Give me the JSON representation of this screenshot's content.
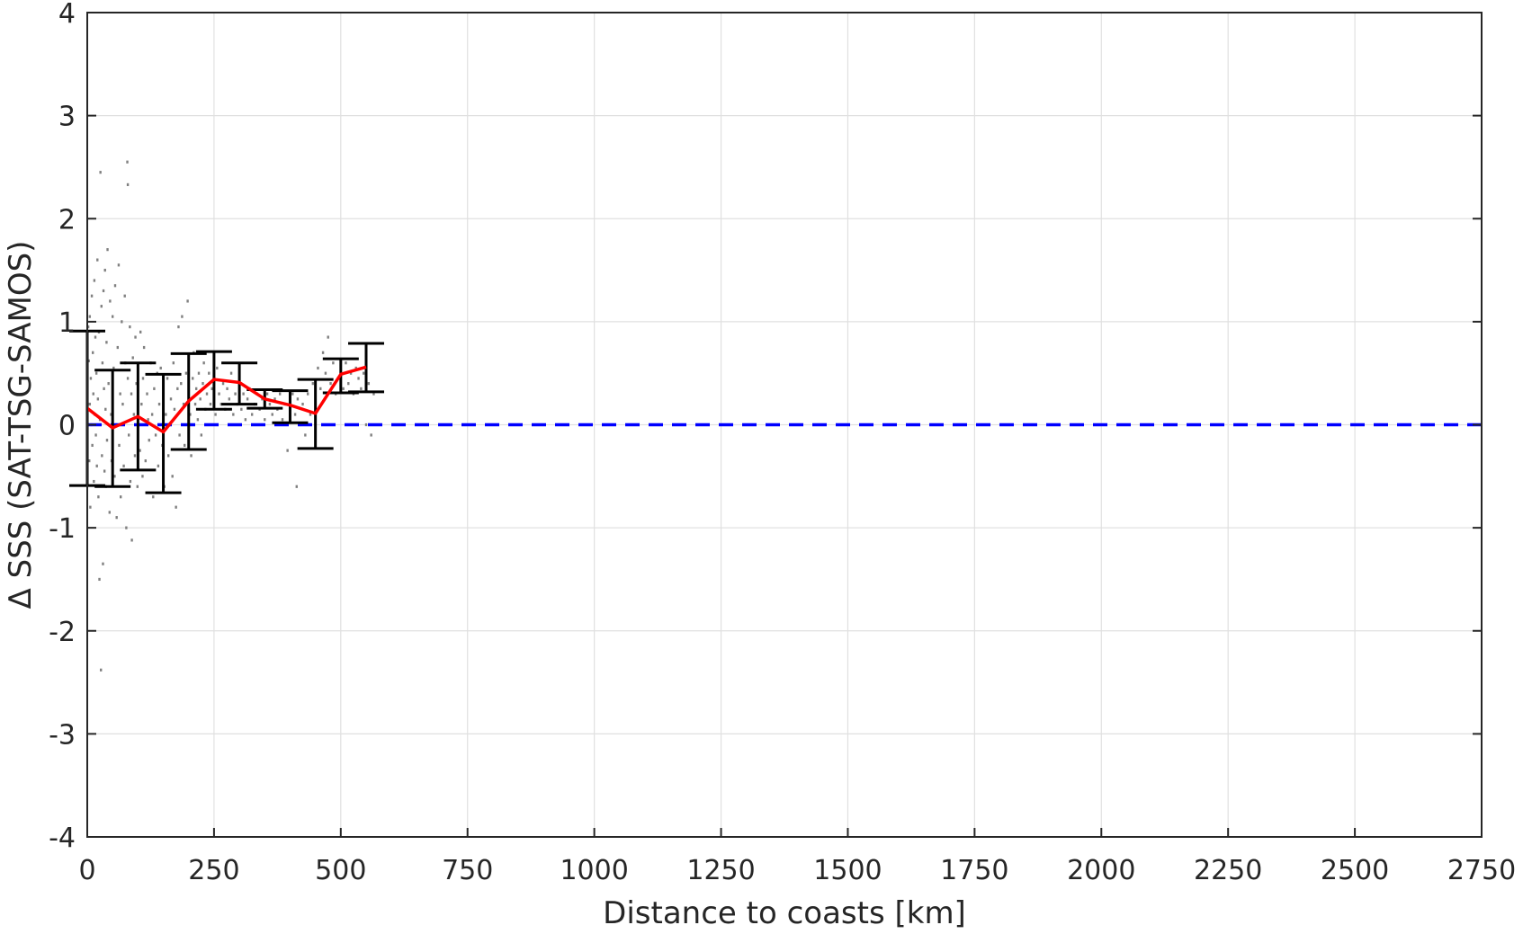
{
  "chart_data": {
    "type": "scatter",
    "title": "",
    "xlabel": "Distance to coasts [km]",
    "ylabel": "Δ SSS (SAT-TSG-SAMOS)",
    "xlim": [
      0,
      2750
    ],
    "ylim": [
      -4,
      4
    ],
    "x_ticks": [
      0,
      250,
      500,
      750,
      1000,
      1250,
      1500,
      1750,
      2000,
      2250,
      2500,
      2750
    ],
    "y_ticks": [
      -4,
      -3,
      -2,
      -1,
      0,
      1,
      2,
      3,
      4
    ],
    "grid": true,
    "colors": {
      "scatter": "#808080",
      "mean_line": "#ff0000",
      "error_bars": "#000000",
      "zero_line": "#0000ff",
      "grid": "#e0e0e0",
      "axes": "#262626"
    },
    "reference_line": {
      "y": 0,
      "style": "dashed"
    },
    "mean_series": {
      "x": [
        0,
        50,
        100,
        150,
        200,
        250,
        300,
        350,
        400,
        450,
        500,
        550
      ],
      "y": [
        0.16,
        -0.03,
        0.08,
        -0.07,
        0.23,
        0.44,
        0.41,
        0.25,
        0.19,
        0.11,
        0.49,
        0.56
      ]
    },
    "error_bars": [
      {
        "x": 0,
        "low": -0.59,
        "high": 0.91
      },
      {
        "x": 50,
        "low": -0.6,
        "high": 0.53
      },
      {
        "x": 100,
        "low": -0.44,
        "high": 0.6
      },
      {
        "x": 150,
        "low": -0.66,
        "high": 0.49
      },
      {
        "x": 200,
        "low": -0.24,
        "high": 0.69
      },
      {
        "x": 250,
        "low": 0.15,
        "high": 0.71
      },
      {
        "x": 300,
        "low": 0.2,
        "high": 0.6
      },
      {
        "x": 350,
        "low": 0.16,
        "high": 0.34
      },
      {
        "x": 400,
        "low": 0.02,
        "high": 0.33
      },
      {
        "x": 450,
        "low": -0.23,
        "high": 0.44
      },
      {
        "x": 500,
        "low": 0.31,
        "high": 0.64
      },
      {
        "x": 550,
        "low": 0.32,
        "high": 0.79
      }
    ],
    "scatter_points": [
      [
        2,
        0.95
      ],
      [
        3,
        0.62
      ],
      [
        4,
        -0.35
      ],
      [
        5,
        1.05
      ],
      [
        5,
        0.2
      ],
      [
        6,
        -0.8
      ],
      [
        7,
        0.45
      ],
      [
        8,
        0.0
      ],
      [
        9,
        1.25
      ],
      [
        10,
        -0.2
      ],
      [
        11,
        0.7
      ],
      [
        12,
        0.3
      ],
      [
        13,
        -0.55
      ],
      [
        14,
        1.4
      ],
      [
        15,
        0.1
      ],
      [
        16,
        0.85
      ],
      [
        17,
        -0.1
      ],
      [
        18,
        0.5
      ],
      [
        19,
        -0.4
      ],
      [
        20,
        1.6
      ],
      [
        21,
        0.25
      ],
      [
        22,
        -0.7
      ],
      [
        23,
        0.9
      ],
      [
        24,
        -1.5
      ],
      [
        25,
        0.05
      ],
      [
        26,
        2.45
      ],
      [
        27,
        -2.38
      ],
      [
        28,
        1.15
      ],
      [
        29,
        -0.3
      ],
      [
        30,
        0.6
      ],
      [
        31,
        -1.35
      ],
      [
        32,
        1.3
      ],
      [
        33,
        0.35
      ],
      [
        34,
        -0.45
      ],
      [
        35,
        1.5
      ],
      [
        36,
        0.15
      ],
      [
        37,
        -0.6
      ],
      [
        38,
        0.8
      ],
      [
        39,
        -0.15
      ],
      [
        40,
        1.7
      ],
      [
        42,
        0.4
      ],
      [
        44,
        -0.85
      ],
      [
        45,
        1.2
      ],
      [
        47,
        0.1
      ],
      [
        48,
        -0.35
      ],
      [
        50,
        1.05
      ],
      [
        52,
        0.55
      ],
      [
        54,
        -0.5
      ],
      [
        55,
        1.35
      ],
      [
        57,
        0.0
      ],
      [
        58,
        -0.9
      ],
      [
        60,
        0.75
      ],
      [
        62,
        1.55
      ],
      [
        63,
        -0.2
      ],
      [
        65,
        0.3
      ],
      [
        66,
        -0.7
      ],
      [
        68,
        1.0
      ],
      [
        70,
        0.2
      ],
      [
        72,
        -0.4
      ],
      [
        74,
        1.25
      ],
      [
        75,
        0.6
      ],
      [
        77,
        -1.0
      ],
      [
        79,
        2.55
      ],
      [
        80,
        2.33
      ],
      [
        80,
        0.45
      ],
      [
        82,
        -0.1
      ],
      [
        84,
        0.95
      ],
      [
        85,
        -0.55
      ],
      [
        87,
        0.3
      ],
      [
        88,
        -1.12
      ],
      [
        90,
        0.65
      ],
      [
        92,
        0.1
      ],
      [
        94,
        -0.3
      ],
      [
        95,
        0.85
      ],
      [
        97,
        0.4
      ],
      [
        99,
        -0.6
      ],
      [
        100,
        0.55
      ],
      [
        102,
        0.0
      ],
      [
        104,
        -0.25
      ],
      [
        105,
        0.9
      ],
      [
        107,
        0.2
      ],
      [
        109,
        -0.5
      ],
      [
        110,
        0.45
      ],
      [
        112,
        0.75
      ],
      [
        115,
        -0.35
      ],
      [
        118,
        0.3
      ],
      [
        120,
        0.05
      ],
      [
        122,
        -0.15
      ],
      [
        125,
        0.6
      ],
      [
        128,
        0.1
      ],
      [
        130,
        -0.7
      ],
      [
        132,
        0.35
      ],
      [
        135,
        -0.1
      ],
      [
        138,
        0.5
      ],
      [
        140,
        -0.4
      ],
      [
        142,
        0.2
      ],
      [
        145,
        0.55
      ],
      [
        148,
        -0.2
      ],
      [
        150,
        0.3
      ],
      [
        152,
        -0.6
      ],
      [
        155,
        0.1
      ],
      [
        158,
        0.45
      ],
      [
        160,
        -0.3
      ],
      [
        163,
        0.0
      ],
      [
        165,
        0.25
      ],
      [
        168,
        -0.5
      ],
      [
        170,
        0.6
      ],
      [
        172,
        0.15
      ],
      [
        175,
        -0.8
      ],
      [
        178,
        0.35
      ],
      [
        180,
        0.95
      ],
      [
        182,
        -0.1
      ],
      [
        185,
        0.4
      ],
      [
        187,
        1.05
      ],
      [
        190,
        0.2
      ],
      [
        192,
        -0.2
      ],
      [
        195,
        0.5
      ],
      [
        198,
        1.2
      ],
      [
        200,
        0.3
      ],
      [
        203,
        0.1
      ],
      [
        205,
        -0.3
      ],
      [
        208,
        0.45
      ],
      [
        210,
        0.7
      ],
      [
        213,
        0.2
      ],
      [
        215,
        0.35
      ],
      [
        218,
        0.05
      ],
      [
        220,
        0.5
      ],
      [
        223,
        0.25
      ],
      [
        225,
        -0.1
      ],
      [
        228,
        0.4
      ],
      [
        230,
        0.6
      ],
      [
        233,
        0.15
      ],
      [
        236,
        0.3
      ],
      [
        240,
        0.5
      ],
      [
        243,
        0.2
      ],
      [
        246,
        0.35
      ],
      [
        250,
        0.45
      ],
      [
        253,
        0.1
      ],
      [
        256,
        0.55
      ],
      [
        260,
        0.3
      ],
      [
        264,
        0.2
      ],
      [
        268,
        0.4
      ],
      [
        272,
        0.15
      ],
      [
        276,
        0.35
      ],
      [
        280,
        0.25
      ],
      [
        284,
        0.5
      ],
      [
        288,
        0.1
      ],
      [
        292,
        0.3
      ],
      [
        296,
        0.2
      ],
      [
        300,
        0.4
      ],
      [
        304,
        0.15
      ],
      [
        308,
        0.3
      ],
      [
        312,
        0.05
      ],
      [
        316,
        0.25
      ],
      [
        320,
        0.35
      ],
      [
        325,
        0.1
      ],
      [
        330,
        0.2
      ],
      [
        335,
        0.3
      ],
      [
        340,
        0.15
      ],
      [
        345,
        0.25
      ],
      [
        350,
        0.05
      ],
      [
        355,
        0.3
      ],
      [
        360,
        0.2
      ],
      [
        365,
        0.1
      ],
      [
        370,
        0.25
      ],
      [
        375,
        0.15
      ],
      [
        380,
        0.3
      ],
      [
        385,
        0.05
      ],
      [
        390,
        0.2
      ],
      [
        395,
        -0.25
      ],
      [
        400,
        0.15
      ],
      [
        405,
        0.3
      ],
      [
        410,
        0.1
      ],
      [
        413,
        -0.6
      ],
      [
        415,
        0.25
      ],
      [
        420,
        0.0
      ],
      [
        425,
        0.2
      ],
      [
        430,
        -0.1
      ],
      [
        435,
        0.3
      ],
      [
        440,
        0.1
      ],
      [
        445,
        0.4
      ],
      [
        450,
        0.2
      ],
      [
        455,
        0.55
      ],
      [
        460,
        0.35
      ],
      [
        465,
        0.7
      ],
      [
        470,
        0.5
      ],
      [
        475,
        0.85
      ],
      [
        480,
        0.4
      ],
      [
        485,
        0.6
      ],
      [
        490,
        0.3
      ],
      [
        495,
        0.45
      ],
      [
        500,
        0.55
      ],
      [
        505,
        0.35
      ],
      [
        510,
        0.6
      ],
      [
        515,
        0.4
      ],
      [
        520,
        0.5
      ],
      [
        525,
        0.3
      ],
      [
        530,
        0.55
      ],
      [
        535,
        0.45
      ],
      [
        540,
        0.35
      ],
      [
        545,
        0.5
      ],
      [
        550,
        0.0
      ],
      [
        555,
        0.4
      ],
      [
        560,
        -0.1
      ],
      [
        565,
        0.3
      ]
    ]
  }
}
